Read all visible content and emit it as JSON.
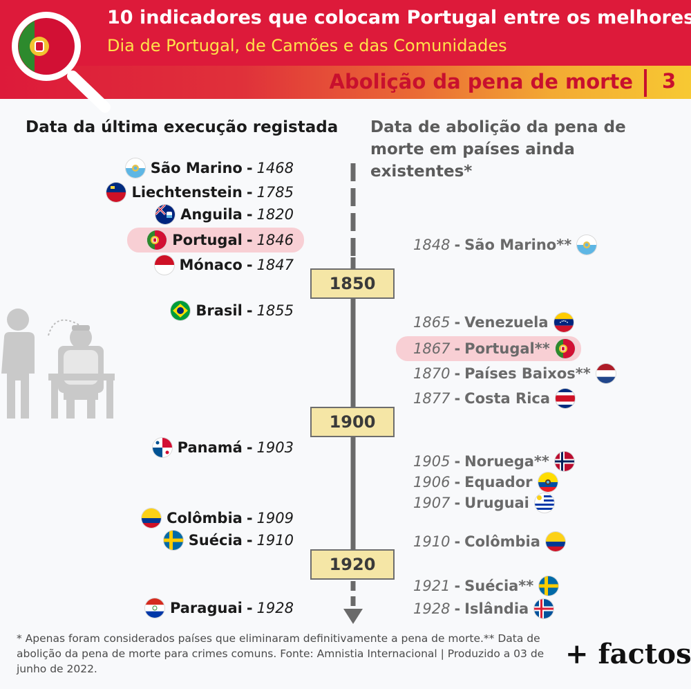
{
  "header": {
    "title": "10 indicadores que colocam Portugal entre os melhores",
    "subtitle": "Dia de Portugal, de Camões e das Comunidades",
    "section_label": "Abolição da pena de morte",
    "section_number": "3"
  },
  "columns": {
    "left_heading": "Data da última execução registada",
    "right_heading": "Data de abolição da pena de morte em países ainda existentes*"
  },
  "timeline": {
    "markers": [
      "1850",
      "1900",
      "1920"
    ]
  },
  "last_execution": [
    {
      "country": "São Marino",
      "year": "1468",
      "flag": "sanmarino-flag"
    },
    {
      "country": "Liechtenstein",
      "year": "1785",
      "flag": "liechtenstein-flag"
    },
    {
      "country": "Anguila",
      "year": "1820",
      "flag": "anguilla-flag"
    },
    {
      "country": "Portugal",
      "year": "1846",
      "flag": "portugal-flag",
      "highlight": true
    },
    {
      "country": "Mónaco",
      "year": "1847",
      "flag": "monaco-flag"
    },
    {
      "country": "Brasil",
      "year": "1855",
      "flag": "brazil-flag"
    },
    {
      "country": "Panamá",
      "year": "1903",
      "flag": "panama-flag"
    },
    {
      "country": "Colômbia",
      "year": "1909",
      "flag": "colombia-flag"
    },
    {
      "country": "Suécia",
      "year": "1910",
      "flag": "sweden-flag"
    },
    {
      "country": "Paraguai",
      "year": "1928",
      "flag": "paraguay-flag"
    }
  ],
  "abolition": [
    {
      "year": "1848",
      "country": "São Marino**",
      "flag": "sanmarino-flag"
    },
    {
      "year": "1865",
      "country": "Venezuela",
      "flag": "venezuela-flag"
    },
    {
      "year": "1867",
      "country": "Portugal**",
      "flag": "portugal-flag",
      "highlight": true
    },
    {
      "year": "1870",
      "country": "Países Baixos**",
      "flag": "netherlands-flag"
    },
    {
      "year": "1877",
      "country": "Costa Rica",
      "flag": "costarica-flag"
    },
    {
      "year": "1905",
      "country": "Noruega**",
      "flag": "norway-flag"
    },
    {
      "year": "1906",
      "country": "Equador",
      "flag": "ecuador-flag"
    },
    {
      "year": "1907",
      "country": "Uruguai",
      "flag": "uruguay-flag"
    },
    {
      "year": "1910",
      "country": "Colômbia",
      "flag": "colombia-flag"
    },
    {
      "year": "1921",
      "country": "Suécia**",
      "flag": "sweden-flag"
    },
    {
      "year": "1928",
      "country": "Islândia",
      "flag": "iceland-flag"
    }
  ],
  "footnote": "* Apenas foram considerados países que eliminaram definitivamente a pena de morte.** Data de abolição da pena de morte para crimes comuns. Fonte: Amnistia Internacional | Produzido a 03 de junho de 2022.",
  "brand": "+ factos"
}
